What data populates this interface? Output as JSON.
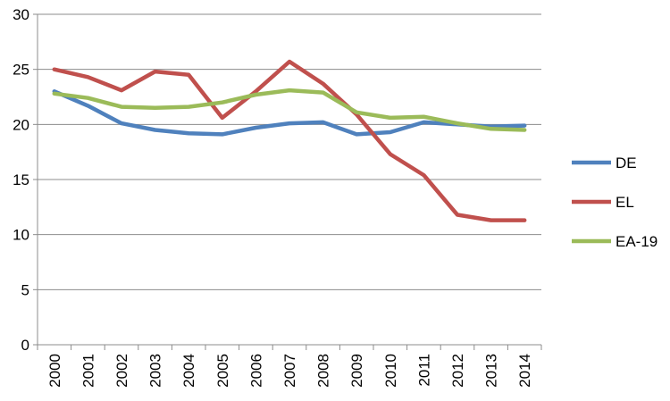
{
  "chart_data": {
    "type": "line",
    "x": [
      "2000",
      "2001",
      "2002",
      "2003",
      "2004",
      "2005",
      "2006",
      "2007",
      "2008",
      "2009",
      "2010",
      "2011",
      "2012",
      "2013",
      "2014"
    ],
    "ylim": [
      0,
      30
    ],
    "yticks": [
      "0",
      "5",
      "10",
      "15",
      "20",
      "25",
      "30"
    ],
    "grid": true,
    "legend_position": "right",
    "series": [
      {
        "name": "DE",
        "color": "#4f81bd",
        "values": [
          23.0,
          21.7,
          20.1,
          19.5,
          19.2,
          19.1,
          19.7,
          20.1,
          20.2,
          19.1,
          19.3,
          20.2,
          20.0,
          19.8,
          19.9
        ]
      },
      {
        "name": "EL",
        "color": "#c0504d",
        "values": [
          25.0,
          24.3,
          23.1,
          24.8,
          24.5,
          20.6,
          23.0,
          25.7,
          23.7,
          20.9,
          17.3,
          15.4,
          11.8,
          11.3,
          11.3
        ]
      },
      {
        "name": "EA-19",
        "color": "#9bbb59",
        "values": [
          22.8,
          22.4,
          21.6,
          21.5,
          21.6,
          22.0,
          22.7,
          23.1,
          22.9,
          21.1,
          20.6,
          20.7,
          20.1,
          19.6,
          19.5
        ]
      }
    ]
  }
}
